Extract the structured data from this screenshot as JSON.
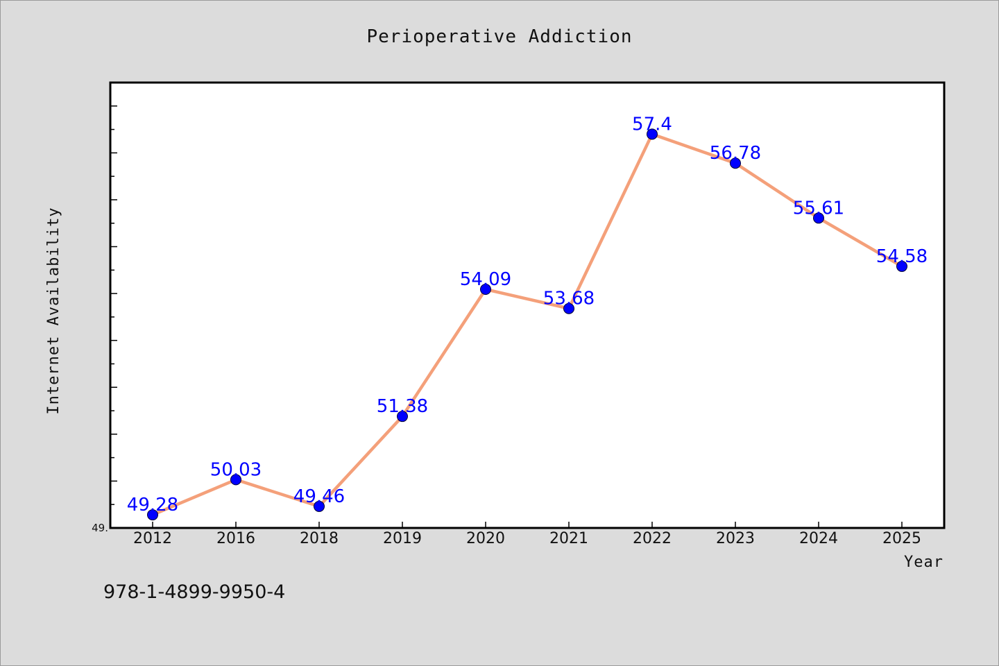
{
  "chart_data": {
    "type": "line",
    "title": "Perioperative Addiction",
    "xlabel": "Year",
    "ylabel": "Internet Availability",
    "categories": [
      "2012",
      "2016",
      "2018",
      "2019",
      "2020",
      "2021",
      "2022",
      "2023",
      "2024",
      "2025"
    ],
    "series": [
      {
        "values": [
          49.28,
          50.03,
          49.46,
          51.38,
          54.09,
          53.68,
          57.4,
          56.78,
          55.61,
          54.58
        ],
        "labels": [
          "49.28",
          "50.03",
          "49.46",
          "51.38",
          "54.09",
          "53.68",
          "57.4",
          "56.78",
          "55.61",
          "54.58"
        ]
      }
    ],
    "ylim": [
      49.0,
      58.5
    ],
    "ymin_label": "49.",
    "grid": false,
    "legend": "none",
    "colors": {
      "line": "#f4a07a",
      "marker": "#0000ff",
      "data_label": "#0000ff",
      "background": "#dcdcdc",
      "plot_background": "#ffffff"
    }
  },
  "footer": {
    "isbn": "978-1-4899-9950-4"
  }
}
